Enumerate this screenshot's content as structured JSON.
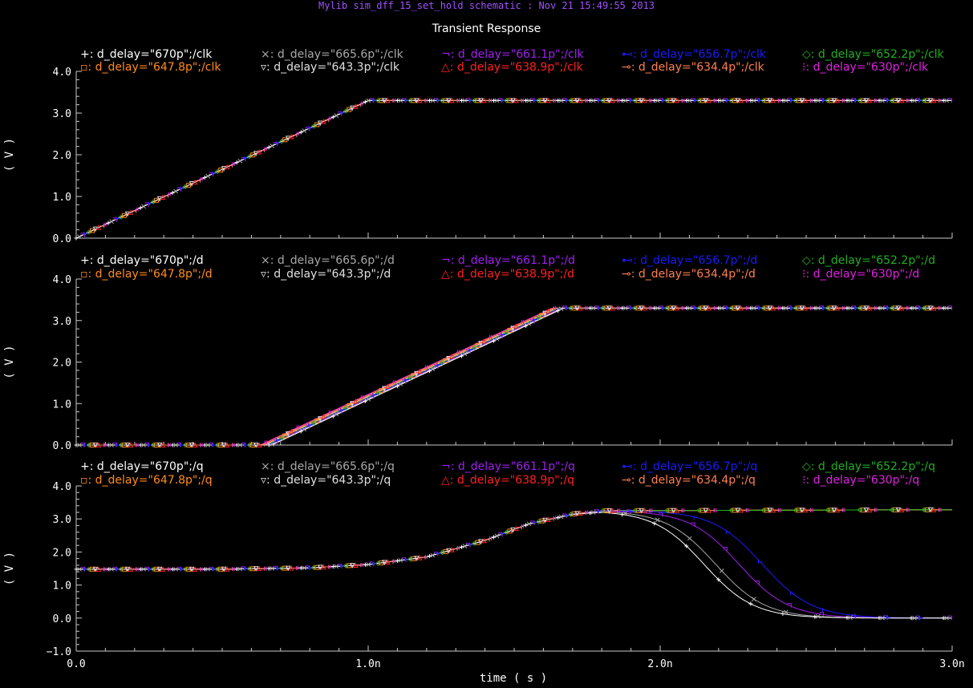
{
  "window": {
    "title": "Mylib sim_dff_15_set_hold schematic : Nov 21 15:49:55 2013"
  },
  "header": {
    "title": "Transient Response"
  },
  "colors": {
    "background": "#000000",
    "axis": "#c8c8c8",
    "series": [
      "#ffffff",
      "#a8a8a8",
      "#a020f0",
      "#1a1aff",
      "#20b020",
      "#ff8c1a",
      "#e0e0e0",
      "#ff2020",
      "#ff7f50",
      "#e020e0"
    ]
  },
  "markers": [
    "+",
    "×",
    "¬",
    "⊷",
    "◇",
    "▫",
    "▿",
    "△",
    "⊸",
    "⁝"
  ],
  "chart_data": [
    {
      "type": "line",
      "signal": "clk",
      "ylabel": "( V )",
      "ylim": [
        0,
        4.0
      ],
      "yticks": [
        "0.0",
        "1.0",
        "2.0",
        "3.0",
        "4.0"
      ],
      "legend": [
        "d_delay=\"670p\";/clk",
        "d_delay=\"665.6p\";/clk",
        "d_delay=\"661.1p\";/clk",
        "d_delay=\"656.7p\";/clk",
        "d_delay=\"652.2p\";/clk",
        "d_delay=\"647.8p\";/clk",
        "d_delay=\"643.3p\";/clk",
        "d_delay=\"638.9p\";/clk",
        "d_delay=\"634.4p\";/clk",
        "d_delay=\"630p\";/clk"
      ],
      "series_x": [
        [
          0,
          1e-09,
          3e-09
        ]
      ],
      "series_y": [
        [
          0,
          3.3,
          3.3
        ]
      ]
    },
    {
      "type": "line",
      "signal": "d",
      "ylabel": "( V )",
      "ylim": [
        0,
        4.0
      ],
      "yticks": [
        "0.0",
        "1.0",
        "2.0",
        "3.0",
        "4.0"
      ],
      "legend": [
        "d_delay=\"670p\";/d",
        "d_delay=\"665.6p\";/d",
        "d_delay=\"661.1p\";/d",
        "d_delay=\"656.7p\";/d",
        "d_delay=\"652.2p\";/d",
        "d_delay=\"647.8p\";/d",
        "d_delay=\"643.3p\";/d",
        "d_delay=\"638.9p\";/d",
        "d_delay=\"634.4p\";/d",
        "d_delay=\"630p\";/d"
      ],
      "delays": [
        6.7e-10,
        6.656e-10,
        6.611e-10,
        6.567e-10,
        6.522e-10,
        6.478e-10,
        6.433e-10,
        6.389e-10,
        6.344e-10,
        6.3e-10
      ],
      "rise_time": 1e-09,
      "vhigh": 3.3
    },
    {
      "type": "line",
      "signal": "q",
      "ylabel": "( V )",
      "ylim": [
        -1.0,
        4.0
      ],
      "yticks": [
        "−1.0",
        "0.0",
        "1.0",
        "2.0",
        "3.0",
        "4.0"
      ],
      "legend": [
        "d_delay=\"670p\";/q",
        "d_delay=\"665.6p\";/q",
        "d_delay=\"661.1p\";/q",
        "d_delay=\"656.7p\";/q",
        "d_delay=\"652.2p\";/q",
        "d_delay=\"647.8p\";/q",
        "d_delay=\"643.3p\";/q",
        "d_delay=\"638.9p\";/q",
        "d_delay=\"634.4p\";/q",
        "d_delay=\"630p\";/q"
      ],
      "q_rise": {
        "x": [
          0,
          5e-10,
          8e-10,
          1e-09,
          1.2e-09,
          1.4e-09,
          1.55e-09,
          1.7e-09,
          1.8e-09,
          3e-09
        ],
        "y": [
          1.48,
          1.48,
          1.52,
          1.62,
          1.85,
          2.35,
          2.85,
          3.15,
          3.25,
          3.28
        ]
      },
      "q_fall_centers": [
        2.15e-09,
        2.19e-09,
        2.27e-09,
        2.35e-09
      ],
      "q_fall_series": [
        0,
        1,
        2,
        3
      ]
    }
  ],
  "xaxis": {
    "label": "time ( s )",
    "xlim": [
      0,
      3e-09
    ],
    "ticks": [
      "0.0",
      "1.0n",
      "2.0n",
      "3.0n"
    ]
  }
}
